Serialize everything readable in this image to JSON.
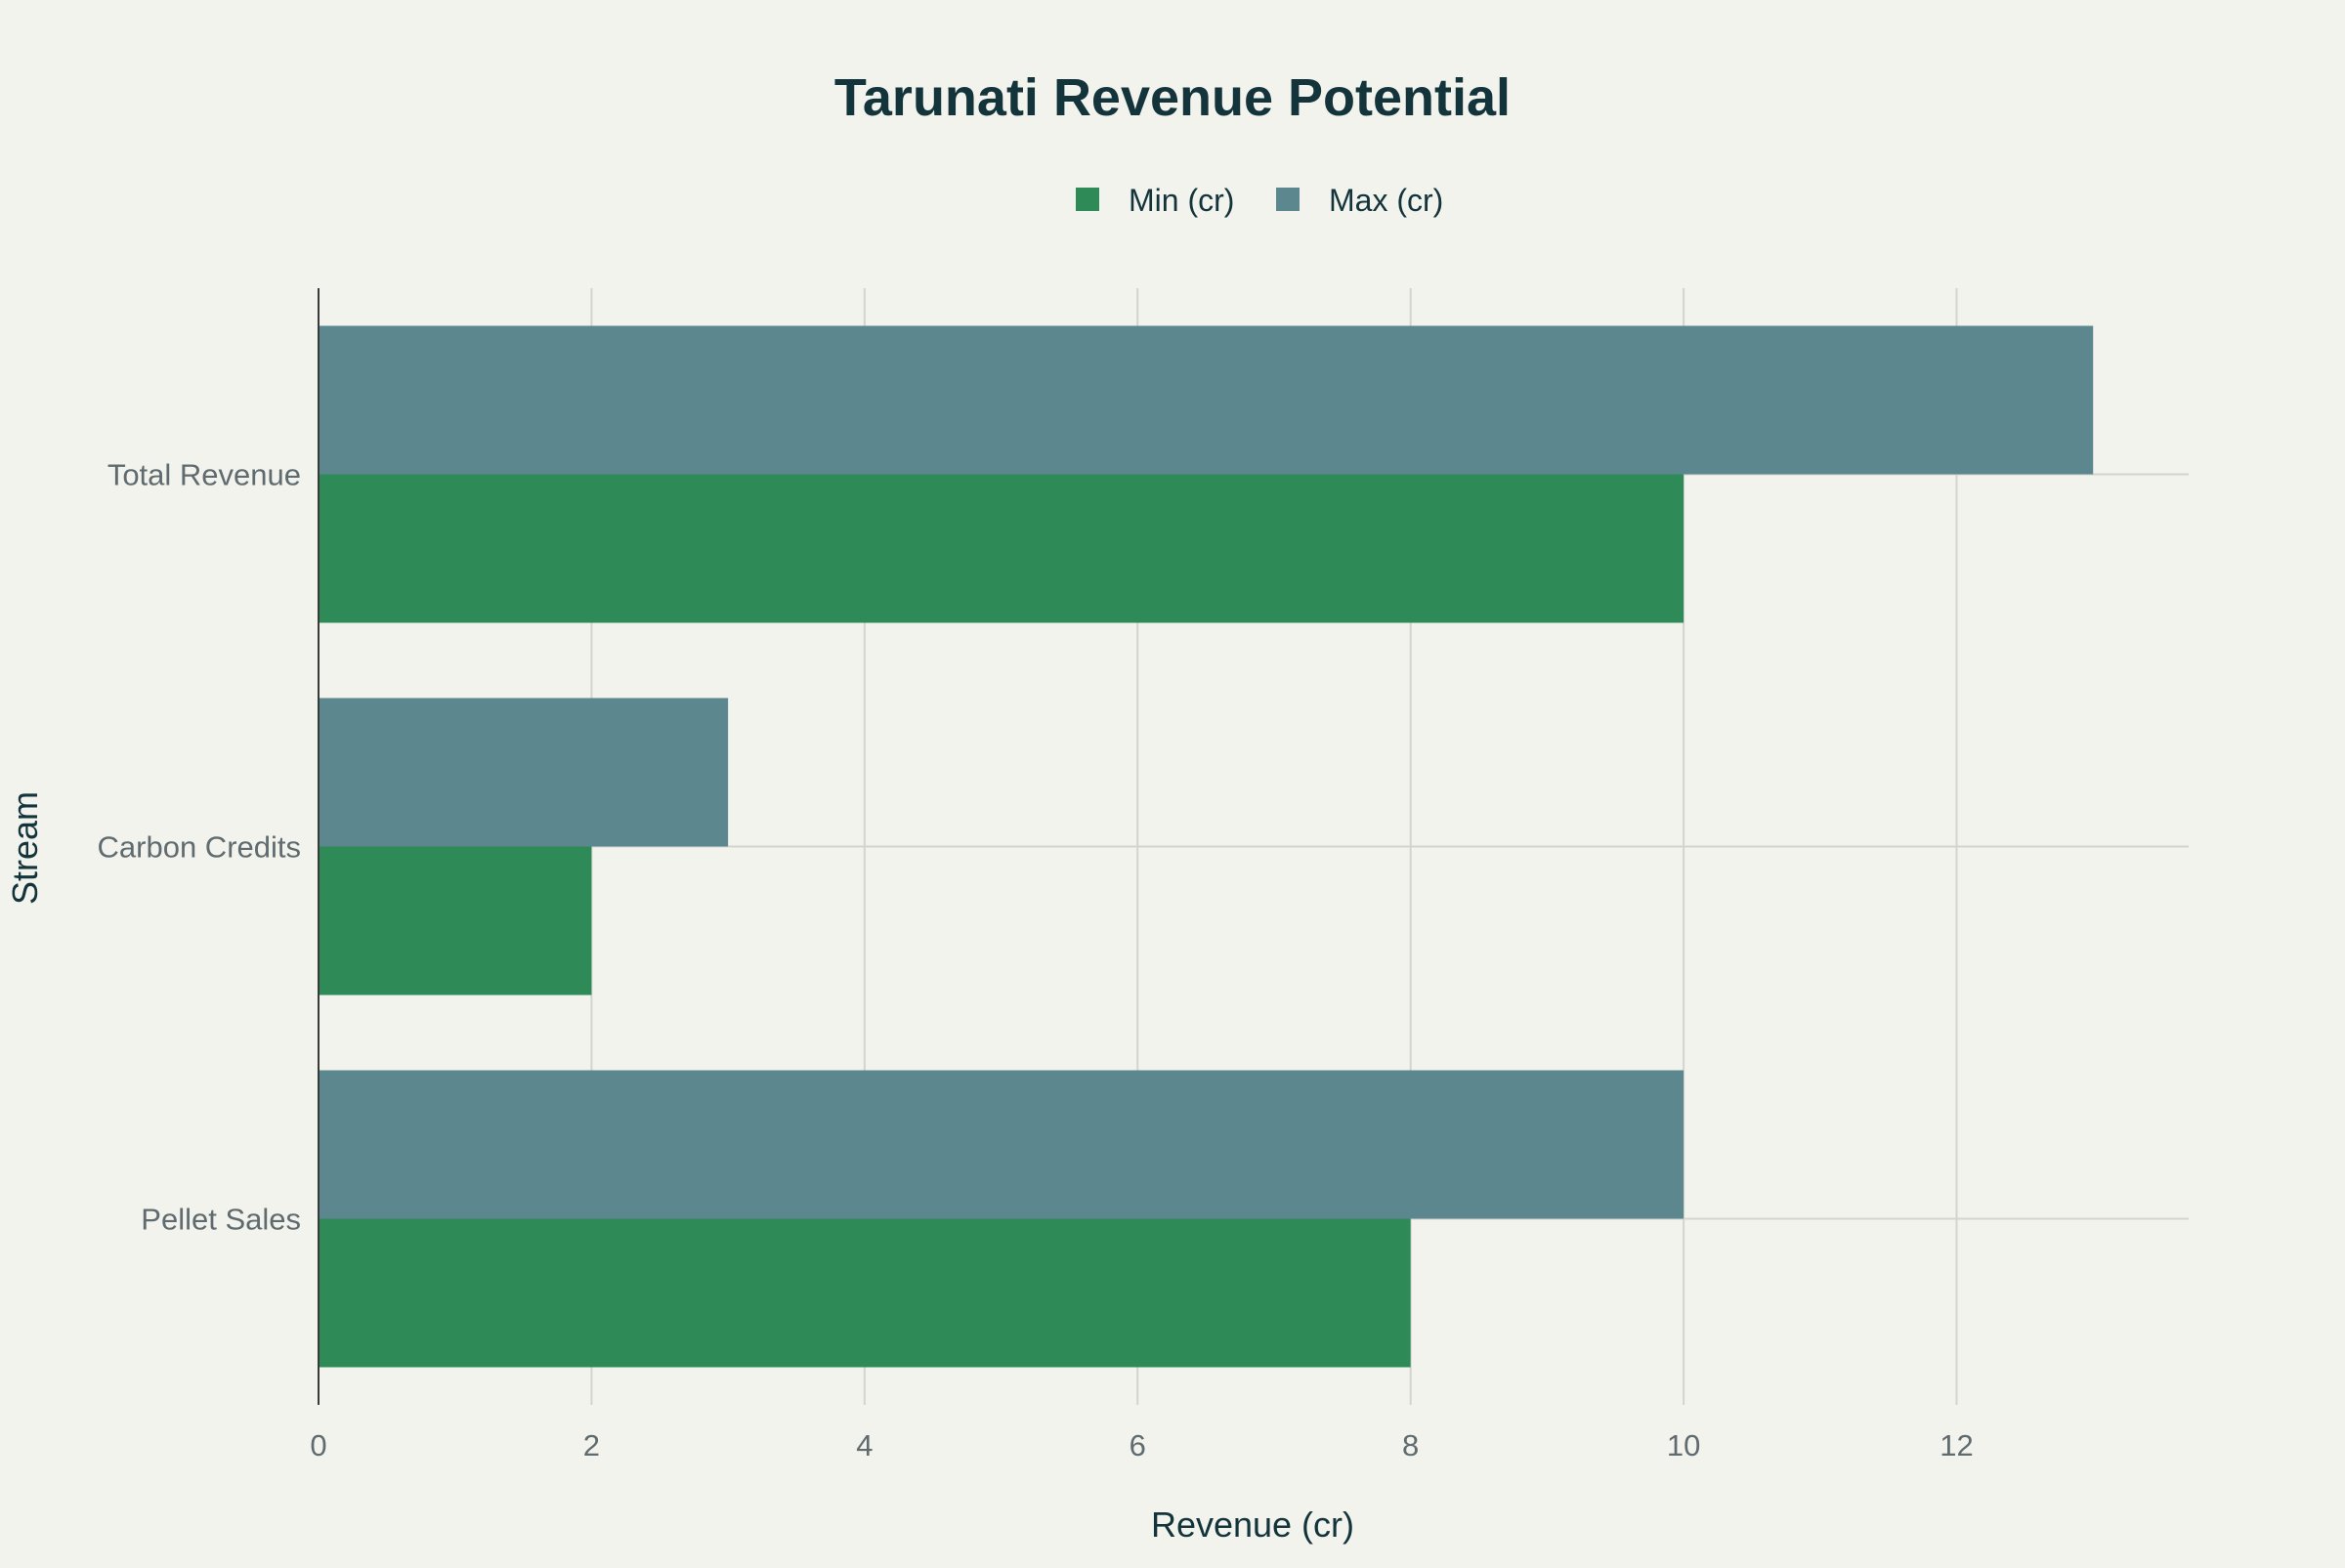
{
  "chart_data": {
    "type": "bar",
    "orientation": "horizontal",
    "title": "Tarunati Revenue Potential",
    "xlabel": "Revenue (cr)",
    "ylabel": "Stream",
    "categories": [
      "Pellet Sales",
      "Carbon Credits",
      "Total Revenue"
    ],
    "series": [
      {
        "name": "Min (cr)",
        "color": "#2e8b57",
        "values": [
          8,
          2,
          10
        ]
      },
      {
        "name": "Max (cr)",
        "color": "#5d878f",
        "values": [
          10,
          3,
          13
        ]
      }
    ],
    "xlim": [
      0,
      13.7
    ],
    "xticks": [
      0,
      2,
      4,
      6,
      8,
      10,
      12
    ],
    "grid": true,
    "legend_position": "top-center"
  }
}
